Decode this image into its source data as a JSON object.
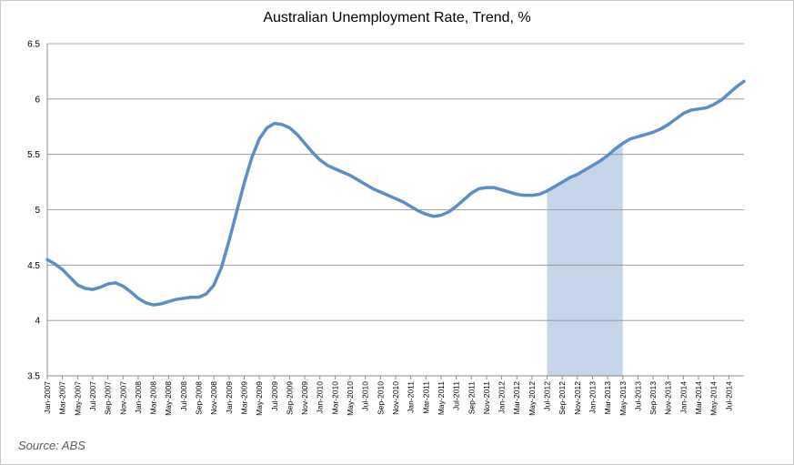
{
  "chart_data": {
    "type": "line",
    "title": "Australian Unemployment Rate, Trend, %",
    "source": "Source: ABS",
    "ylim": [
      3.5,
      6.5
    ],
    "y_ticks": [
      "3.5",
      "4",
      "4.5",
      "5",
      "5.5",
      "6",
      "6.5"
    ],
    "x_tick_labels": [
      "Jan-2007",
      "Mar-2007",
      "May-2007",
      "Jul-2007",
      "Sep-2007",
      "Nov-2007",
      "Jan-2008",
      "Mar-2008",
      "May-2008",
      "Jul-2008",
      "Sep-2008",
      "Nov-2008",
      "Jan-2009",
      "Mar-2009",
      "May-2009",
      "Jul-2009",
      "Sep-2009",
      "Nov-2009",
      "Jan-2010",
      "Mar-2010",
      "May-2010",
      "Jul-2010",
      "Sep-2010",
      "Nov-2010",
      "Jan-2011",
      "Mar-2011",
      "May-2011",
      "Jul-2011",
      "Sep-2011",
      "Nov-2011",
      "Jan-2012",
      "Mar-2012",
      "May-2012",
      "Jul-2012",
      "Sep-2012",
      "Nov-2012",
      "Jan-2013",
      "Mar-2013",
      "May-2013",
      "Jul-2013",
      "Sep-2013",
      "Nov-2013",
      "Jan-2014",
      "Mar-2014",
      "May-2014",
      "Jul-2014"
    ],
    "grid": true,
    "line_color": "#5b8ec5",
    "shade_color": "#c5d6ea",
    "shaded_region": [
      "Jul-2012",
      "May-2013"
    ],
    "series": [
      {
        "values": [
          4.55,
          4.51,
          4.46,
          4.39,
          4.32,
          4.29,
          4.28,
          4.3,
          4.33,
          4.34,
          4.31,
          4.26,
          4.2,
          4.16,
          4.14,
          4.15,
          4.17,
          4.19,
          4.2,
          4.21,
          4.21,
          4.24,
          4.32,
          4.48,
          4.72,
          4.98,
          5.24,
          5.47,
          5.64,
          5.74,
          5.78,
          5.77,
          5.74,
          5.68,
          5.6,
          5.52,
          5.45,
          5.4,
          5.37,
          5.34,
          5.31,
          5.27,
          5.23,
          5.19,
          5.16,
          5.13,
          5.1,
          5.07,
          5.03,
          4.99,
          4.96,
          4.94,
          4.95,
          4.98,
          5.03,
          5.09,
          5.15,
          5.19,
          5.2,
          5.2,
          5.18,
          5.16,
          5.14,
          5.13,
          5.13,
          5.14,
          5.17,
          5.21,
          5.25,
          5.29,
          5.32,
          5.36,
          5.4,
          5.44,
          5.49,
          5.55,
          5.6,
          5.64,
          5.66,
          5.68,
          5.7,
          5.73,
          5.77,
          5.82,
          5.87,
          5.9,
          5.91,
          5.92,
          5.95,
          5.99,
          6.05,
          6.11,
          6.16
        ]
      }
    ]
  }
}
